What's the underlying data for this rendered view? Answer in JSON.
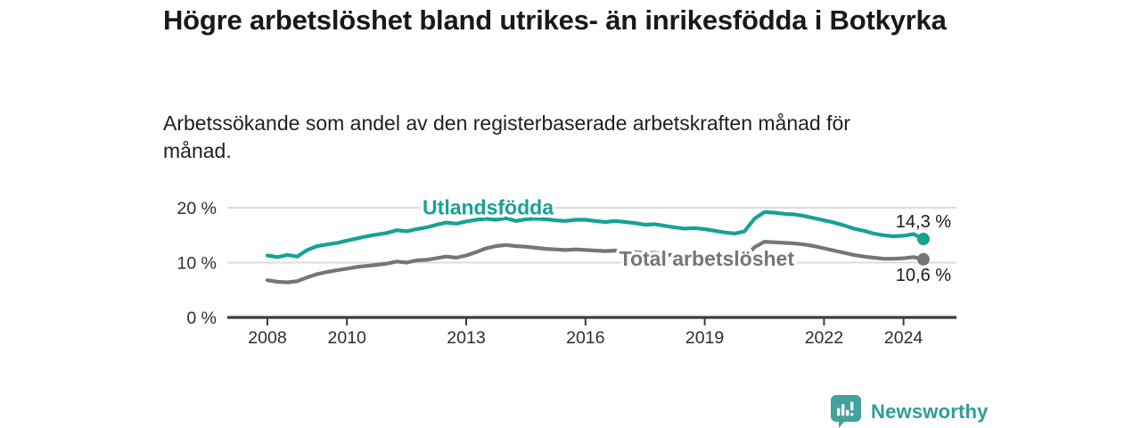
{
  "header": {
    "title": "Högre arbetslöshet bland utrikes- än inrikesfödda i Botkyrka",
    "subtitle": "Arbetssökande som andel av den registerbaserade arbetskraften månad för månad."
  },
  "footer": {
    "brand": "Newsworthy",
    "logo_icon": "bar-chart-speech-bubble"
  },
  "colors": {
    "series_teal": "#16a296",
    "series_gray": "#767676",
    "grid": "#dcdcdc",
    "axis": "#3d3d3d",
    "text_dark": "#1a1a1a",
    "tick_text": "#2e2e2e",
    "brand_teal": "#2f9d96",
    "logo_teal": "#43a39c"
  },
  "chart_data": {
    "type": "line",
    "title": "Högre arbetslöshet bland utrikes- än inrikesfödda i Botkyrka",
    "subtitle": "Arbetssökande som andel av den registerbaserade arbetskraften månad för månad.",
    "xlabel": "",
    "ylabel": "",
    "x_unit": "year",
    "y_unit": "%",
    "xlim": [
      2007.0,
      2025.5
    ],
    "ylim": [
      0,
      22
    ],
    "grid": "horizontal",
    "legend_position": "inline-labels",
    "x_axis": {
      "ticks": [
        2008,
        2010,
        2013,
        2016,
        2019,
        2022,
        2024
      ]
    },
    "y_axis": {
      "ticks": [
        {
          "label": "0 %",
          "value": 0
        },
        {
          "label": "10 %",
          "value": 10
        },
        {
          "label": "20 %",
          "value": 20
        }
      ]
    },
    "series": [
      {
        "name": "Utlandsfödda",
        "color": "#16a296",
        "end_label": "14,3 %",
        "end_value": 14.3,
        "label_anchor": [
          2013.55,
          20.1
        ],
        "points": [
          [
            2008.0,
            11.3
          ],
          [
            2008.25,
            11.0
          ],
          [
            2008.5,
            11.4
          ],
          [
            2008.75,
            11.1
          ],
          [
            2009.0,
            12.3
          ],
          [
            2009.25,
            13.0
          ],
          [
            2009.5,
            13.3
          ],
          [
            2009.75,
            13.6
          ],
          [
            2010.0,
            14.0
          ],
          [
            2010.25,
            14.4
          ],
          [
            2010.5,
            14.8
          ],
          [
            2010.75,
            15.1
          ],
          [
            2011.0,
            15.4
          ],
          [
            2011.25,
            15.9
          ],
          [
            2011.5,
            15.7
          ],
          [
            2011.75,
            16.1
          ],
          [
            2012.0,
            16.4
          ],
          [
            2012.25,
            16.9
          ],
          [
            2012.5,
            17.3
          ],
          [
            2012.75,
            17.1
          ],
          [
            2013.0,
            17.5
          ],
          [
            2013.25,
            17.8
          ],
          [
            2013.5,
            18.0
          ],
          [
            2013.75,
            17.8
          ],
          [
            2014.0,
            18.1
          ],
          [
            2014.25,
            17.6
          ],
          [
            2014.5,
            17.9
          ],
          [
            2014.75,
            18.0
          ],
          [
            2015.0,
            17.9
          ],
          [
            2015.25,
            17.7
          ],
          [
            2015.5,
            17.6
          ],
          [
            2015.75,
            17.8
          ],
          [
            2016.0,
            17.8
          ],
          [
            2016.25,
            17.6
          ],
          [
            2016.5,
            17.4
          ],
          [
            2016.75,
            17.6
          ],
          [
            2017.0,
            17.4
          ],
          [
            2017.25,
            17.2
          ],
          [
            2017.5,
            16.9
          ],
          [
            2017.75,
            17.0
          ],
          [
            2018.0,
            16.7
          ],
          [
            2018.25,
            16.4
          ],
          [
            2018.5,
            16.2
          ],
          [
            2018.75,
            16.3
          ],
          [
            2019.0,
            16.1
          ],
          [
            2019.25,
            15.8
          ],
          [
            2019.5,
            15.5
          ],
          [
            2019.75,
            15.3
          ],
          [
            2020.0,
            15.7
          ],
          [
            2020.25,
            18.0
          ],
          [
            2020.5,
            19.2
          ],
          [
            2020.75,
            19.1
          ],
          [
            2021.0,
            18.9
          ],
          [
            2021.25,
            18.8
          ],
          [
            2021.5,
            18.5
          ],
          [
            2021.75,
            18.1
          ],
          [
            2022.0,
            17.7
          ],
          [
            2022.25,
            17.3
          ],
          [
            2022.5,
            16.8
          ],
          [
            2022.75,
            16.2
          ],
          [
            2023.0,
            15.8
          ],
          [
            2023.25,
            15.3
          ],
          [
            2023.5,
            15.0
          ],
          [
            2023.75,
            14.8
          ],
          [
            2024.0,
            14.9
          ],
          [
            2024.25,
            15.2
          ],
          [
            2024.5,
            14.3
          ]
        ]
      },
      {
        "name": "Total arbetslöshet",
        "color": "#767676",
        "end_label": "10,6 %",
        "end_value": 10.6,
        "label_anchor": [
          2019.05,
          10.7
        ],
        "points": [
          [
            2008.0,
            6.8
          ],
          [
            2008.25,
            6.5
          ],
          [
            2008.5,
            6.4
          ],
          [
            2008.75,
            6.6
          ],
          [
            2009.0,
            7.3
          ],
          [
            2009.25,
            7.9
          ],
          [
            2009.5,
            8.3
          ],
          [
            2009.75,
            8.6
          ],
          [
            2010.0,
            8.9
          ],
          [
            2010.25,
            9.2
          ],
          [
            2010.5,
            9.4
          ],
          [
            2010.75,
            9.6
          ],
          [
            2011.0,
            9.8
          ],
          [
            2011.25,
            10.2
          ],
          [
            2011.5,
            10.0
          ],
          [
            2011.75,
            10.4
          ],
          [
            2012.0,
            10.5
          ],
          [
            2012.25,
            10.8
          ],
          [
            2012.5,
            11.1
          ],
          [
            2012.75,
            10.9
          ],
          [
            2013.0,
            11.3
          ],
          [
            2013.25,
            11.9
          ],
          [
            2013.5,
            12.6
          ],
          [
            2013.75,
            13.0
          ],
          [
            2014.0,
            13.2
          ],
          [
            2014.25,
            13.0
          ],
          [
            2014.5,
            12.9
          ],
          [
            2014.75,
            12.7
          ],
          [
            2015.0,
            12.5
          ],
          [
            2015.25,
            12.4
          ],
          [
            2015.5,
            12.3
          ],
          [
            2015.75,
            12.4
          ],
          [
            2016.0,
            12.3
          ],
          [
            2016.25,
            12.2
          ],
          [
            2016.5,
            12.1
          ],
          [
            2016.75,
            12.2
          ],
          [
            2017.0,
            12.0
          ],
          [
            2017.25,
            11.9
          ],
          [
            2017.5,
            11.7
          ],
          [
            2017.75,
            11.8
          ],
          [
            2018.0,
            11.5
          ],
          [
            2018.25,
            11.3
          ],
          [
            2018.5,
            11.2
          ],
          [
            2018.75,
            11.3
          ],
          [
            2019.0,
            11.0
          ],
          [
            2019.25,
            10.8
          ],
          [
            2019.5,
            10.7
          ],
          [
            2019.75,
            10.6
          ],
          [
            2020.0,
            10.9
          ],
          [
            2020.25,
            12.8
          ],
          [
            2020.5,
            13.8
          ],
          [
            2020.75,
            13.7
          ],
          [
            2021.0,
            13.6
          ],
          [
            2021.25,
            13.5
          ],
          [
            2021.5,
            13.3
          ],
          [
            2021.75,
            13.0
          ],
          [
            2022.0,
            12.6
          ],
          [
            2022.25,
            12.2
          ],
          [
            2022.5,
            11.8
          ],
          [
            2022.75,
            11.4
          ],
          [
            2023.0,
            11.1
          ],
          [
            2023.25,
            10.9
          ],
          [
            2023.5,
            10.7
          ],
          [
            2023.75,
            10.7
          ],
          [
            2024.0,
            10.8
          ],
          [
            2024.25,
            11.0
          ],
          [
            2024.5,
            10.6
          ]
        ]
      }
    ]
  }
}
